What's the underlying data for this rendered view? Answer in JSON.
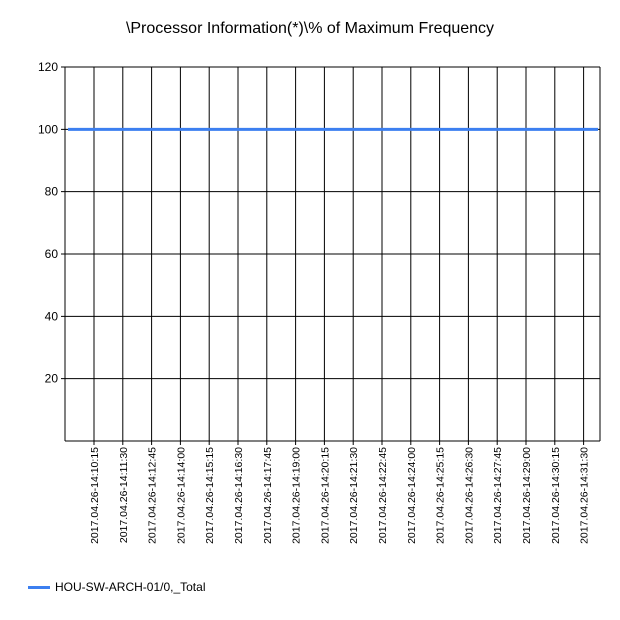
{
  "chart_data": {
    "type": "line",
    "title": "\\Processor Information(*)\\% of Maximum Frequency",
    "xlabel": "",
    "ylabel": "",
    "ylim": [
      0,
      120
    ],
    "y_ticks": [
      20,
      40,
      60,
      80,
      100,
      120
    ],
    "grid": true,
    "legend_position": "bottom-left",
    "categories": [
      "2017.04.26-14:10:15",
      "2017.04.26-14:11:30",
      "2017.04.26-14:12:45",
      "2017.04.26-14:14:00",
      "2017.04.26-14:15:15",
      "2017.04.26-14:16:30",
      "2017.04.26-14:17:45",
      "2017.04.26-14:19:00",
      "2017.04.26-14:20:15",
      "2017.04.26-14:21:30",
      "2017.04.26-14:22:45",
      "2017.04.26-14:24:00",
      "2017.04.26-14:25:15",
      "2017.04.26-14:26:30",
      "2017.04.26-14:27:45",
      "2017.04.26-14:29:00",
      "2017.04.26-14:30:15",
      "2017.04.26-14:31:30"
    ],
    "series": [
      {
        "name": "HOU-SW-ARCH-01/0,_Total",
        "color": "#3c7ff0",
        "values": [
          100,
          100,
          100,
          100,
          100,
          100,
          100,
          100,
          100,
          100,
          100,
          100,
          100,
          100,
          100,
          100,
          100,
          100
        ]
      }
    ]
  }
}
